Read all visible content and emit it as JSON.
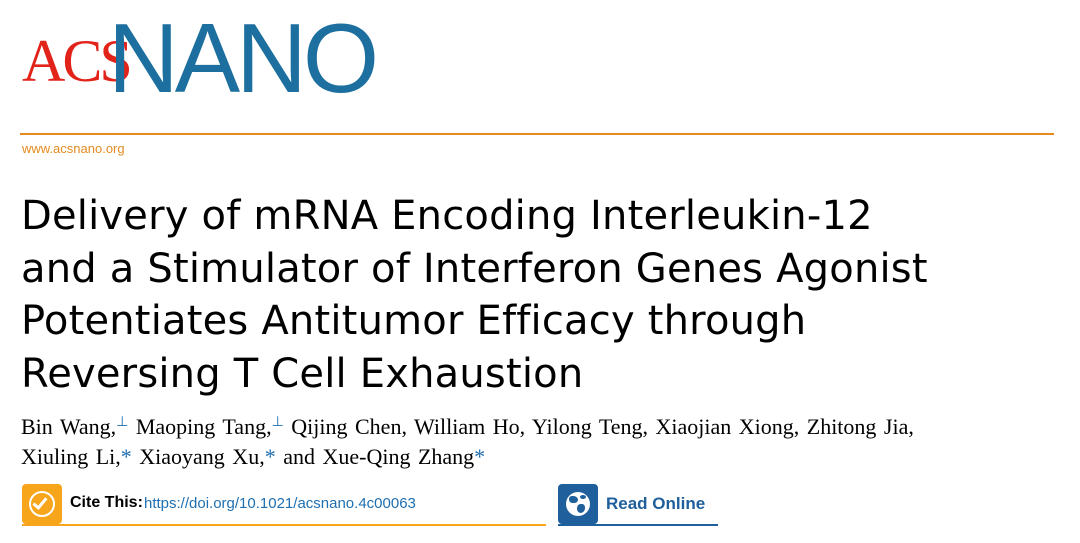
{
  "journal": {
    "logo_acs": "ACS",
    "logo_nano": "NANO",
    "url": "www.acsnano.org"
  },
  "article": {
    "title_lines": [
      "Delivery of mRNA Encoding Interleukin-12",
      "and a Stimulator of Interferon Genes Agonist",
      "Potentiates Antitumor Efficacy through",
      "Reversing T Cell Exhaustion"
    ],
    "authors": {
      "a1": "Bin Wang,",
      "a2": "Maoping Tang,",
      "a3": "Qijing Chen, William Ho, Yilong Teng, Xiaojian Xiong, Zhitong Jia,",
      "a4": "Xiuling Li,",
      "a5": "Xiaoyang Xu,",
      "a6": "and Xue-Qing Zhang",
      "equal_mark": "⊥",
      "corr_mark": "*"
    }
  },
  "cite": {
    "label": "Cite This:",
    "doi": "https://doi.org/10.1021/acsnano.4c00063",
    "icon": "checkmark-circle-icon",
    "color": "#f7a51b"
  },
  "read_online": {
    "label": "Read Online",
    "icon": "globe-icon",
    "color": "#1e5f9c"
  },
  "colors": {
    "acs_red": "#e2231a",
    "nano_blue": "#1c6f9e",
    "rule_orange": "#e58a1f",
    "link_blue": "#1f6fb0"
  }
}
